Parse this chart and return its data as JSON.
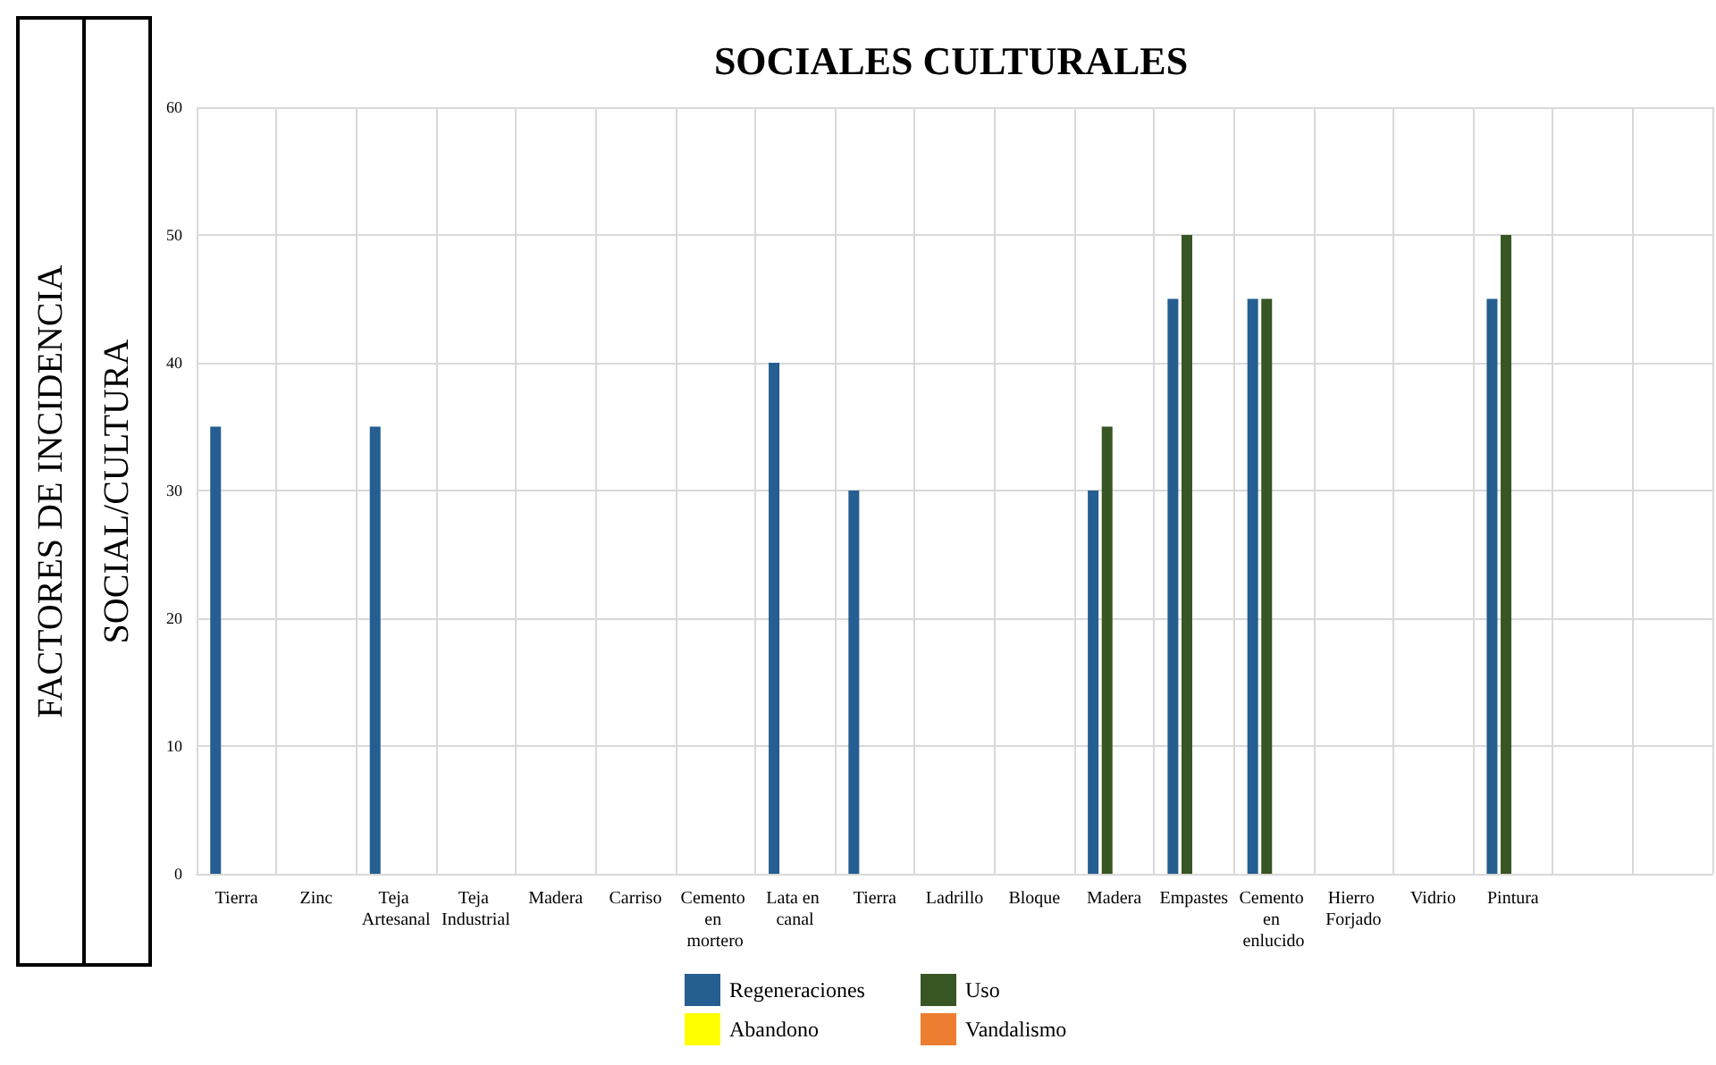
{
  "chart_data": {
    "type": "bar",
    "title": "SOCIALES CULTURALES",
    "ylabel": "SOCIAL/CULTURA",
    "annotations": [
      "FACTORES DE INCIDENCIA"
    ],
    "categories": [
      "Tierra",
      "Zinc",
      "Teja Artesanal",
      "Teja Industrial",
      "Madera",
      "Carriso",
      "Cemento en mortero",
      "Lata en canal",
      "Tierra",
      "Ladrillo",
      "Bloque",
      "Madera",
      "Empastes",
      "Cemento en enlucido",
      "Hierro Forjado",
      "Vidrio",
      "Pintura",
      null,
      null
    ],
    "series": [
      {
        "name": "Regeneraciones",
        "color": "#255e91",
        "values": [
          35,
          null,
          35,
          null,
          null,
          null,
          null,
          40,
          30,
          null,
          null,
          30,
          45,
          45,
          null,
          null,
          45,
          null,
          null
        ]
      },
      {
        "name": "Uso",
        "color": "#375623",
        "values": [
          null,
          null,
          null,
          null,
          null,
          null,
          null,
          null,
          null,
          null,
          null,
          35,
          50,
          45,
          null,
          null,
          50,
          null,
          null
        ]
      },
      {
        "name": "Abandono",
        "color": "#ffff00",
        "values": [
          null,
          null,
          null,
          null,
          null,
          null,
          null,
          null,
          null,
          null,
          null,
          null,
          null,
          null,
          null,
          null,
          null,
          null,
          null
        ]
      },
      {
        "name": "Vandalismo",
        "color": "#ed7d31",
        "values": [
          null,
          null,
          null,
          null,
          null,
          null,
          null,
          null,
          null,
          null,
          null,
          null,
          null,
          null,
          null,
          null,
          null,
          null,
          null
        ]
      }
    ],
    "ylim": [
      0,
      60
    ],
    "yticks": [
      0,
      10,
      20,
      30,
      40,
      50,
      60
    ],
    "grid": true,
    "legend": "bottom"
  }
}
